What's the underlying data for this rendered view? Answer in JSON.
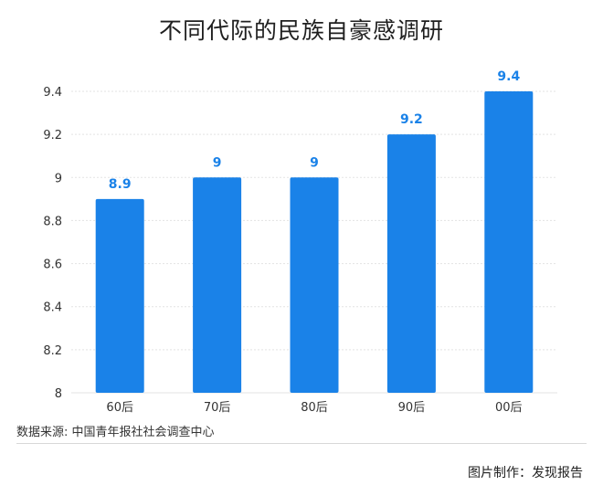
{
  "chart_data": {
    "type": "bar",
    "title": "不同代际的民族自豪感调研",
    "categories": [
      "60后",
      "70后",
      "80后",
      "90后",
      "00后"
    ],
    "values": [
      8.9,
      9,
      9,
      9.2,
      9.4
    ],
    "value_labels": [
      "8.9",
      "9",
      "9",
      "9.2",
      "9.4"
    ],
    "yticks": [
      "8",
      "8.2",
      "8.4",
      "8.6",
      "8.8",
      "9",
      "9.2",
      "9.4"
    ],
    "ylim": [
      8,
      9.4
    ],
    "grid": true,
    "bar_color": "#1a82e8",
    "label_color": "#1a82e8",
    "grid_color": "#e3e3e3"
  },
  "footer": {
    "source": "数据来源: 中国青年报社社会调查中心",
    "credit": "图片制作：发现报告"
  }
}
